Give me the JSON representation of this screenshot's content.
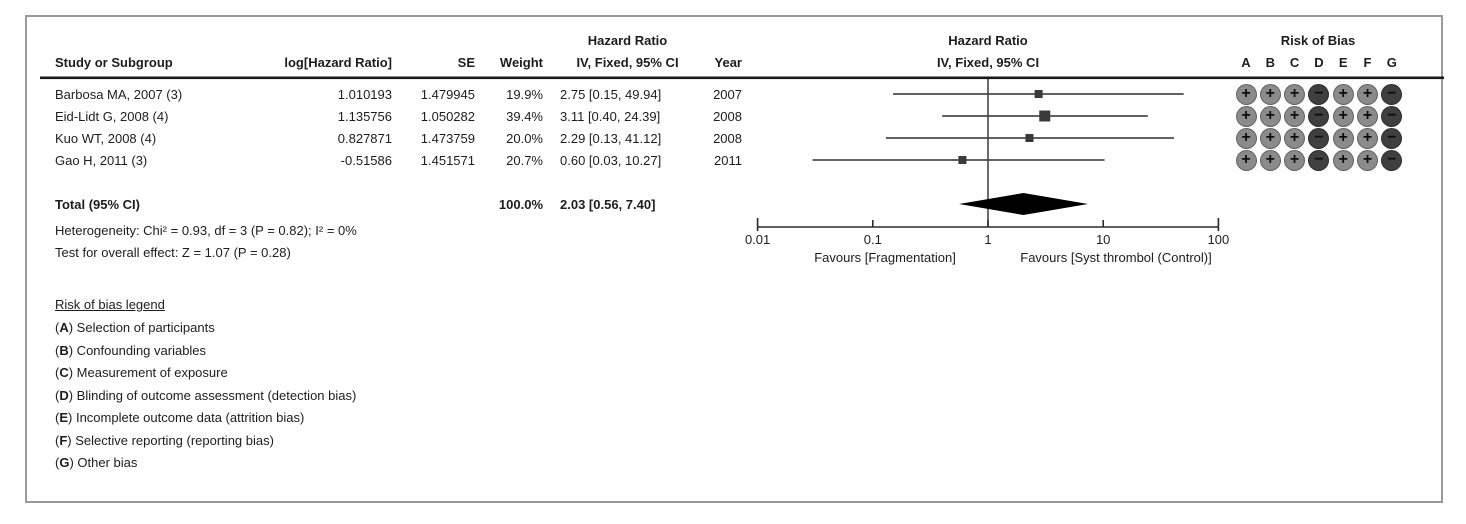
{
  "colors": {
    "frame_border": "#9a9a9a",
    "text": "#1d1d1d",
    "header_rule": "#1a1a1a",
    "ci_line": "#4b4b4b",
    "axis_line": "#2b2b2b",
    "square_fill": "#3a3a3a",
    "diamond_fill": "#000000",
    "bias_plus_fill": "#8b8b8b",
    "bias_minus_fill": "#3f3f3f",
    "bias_symbol": "#0d0d0d"
  },
  "table": {
    "headers": {
      "study": "Study or Subgroup",
      "log_hr": "log[Hazard Ratio]",
      "se": "SE",
      "weight": "Weight",
      "hazard_ratio_line1": "Hazard Ratio",
      "hazard_ratio_line2": "IV, Fixed, 95% CI",
      "year": "Year"
    }
  },
  "plot_header": {
    "line1": "Hazard Ratio",
    "line2": "IV, Fixed, 95% CI"
  },
  "risk_of_bias": {
    "title": "Risk of Bias",
    "columns": [
      "A",
      "B",
      "C",
      "D",
      "E",
      "F",
      "G"
    ],
    "legend_title": "Risk of bias legend",
    "legend": [
      {
        "key": "A",
        "text": "Selection of participants"
      },
      {
        "key": "B",
        "text": "Confounding variables"
      },
      {
        "key": "C",
        "text": "Measurement of exposure"
      },
      {
        "key": "D",
        "text": "Blinding of outcome assessment (detection bias)"
      },
      {
        "key": "E",
        "text": "Incomplete outcome data (attrition bias)"
      },
      {
        "key": "F",
        "text": "Selective reporting (reporting bias)"
      },
      {
        "key": "G",
        "text": "Other bias"
      }
    ]
  },
  "total": {
    "label": "Total (95% CI)",
    "weight_text": "100.0%",
    "ci_text": "2.03 [0.56, 7.40]"
  },
  "stats": {
    "heterogeneity": "Heterogeneity: Chi² = 0.93, df = 3 (P = 0.82); I² = 0%",
    "overall_effect": "Test for overall effect: Z = 1.07 (P = 0.28)"
  },
  "axis": {
    "favours_left": "Favours [Fragmentation]",
    "favours_right": "Favours [Syst thrombol (Control)]"
  },
  "chart_data": {
    "type": "forest",
    "title": "Hazard Ratio",
    "subtitle": "IV, Fixed, 95% CI",
    "xscale": "log",
    "xlim": [
      0.01,
      100
    ],
    "xticks": [
      0.01,
      0.1,
      1,
      10,
      100
    ],
    "xtick_labels": [
      "0.01",
      "0.1",
      "1",
      "10",
      "100"
    ],
    "favours": [
      "Favours [Fragmentation]",
      "Favours [Syst thrombol (Control)]"
    ],
    "studies": [
      {
        "name": "Barbosa MA, 2007 (3)",
        "log_hr_text": "1.010193",
        "se_text": "1.479945",
        "weight_text": "19.9%",
        "ci_text": "2.75 [0.15, 49.94]",
        "year": "2007",
        "log_hr": 1.010193,
        "se": 1.479945,
        "weight_pct": 19.9,
        "hr": 2.75,
        "ci_low": 0.15,
        "ci_high": 49.94,
        "bias": [
          "+",
          "+",
          "+",
          "-",
          "+",
          "+",
          "-"
        ]
      },
      {
        "name": "Eid-Lidt G, 2008 (4)",
        "log_hr_text": "1.135756",
        "se_text": "1.050282",
        "weight_text": "39.4%",
        "ci_text": "3.11 [0.40, 24.39]",
        "year": "2008",
        "log_hr": 1.135756,
        "se": 1.050282,
        "weight_pct": 39.4,
        "hr": 3.11,
        "ci_low": 0.4,
        "ci_high": 24.39,
        "bias": [
          "+",
          "+",
          "+",
          "-",
          "+",
          "+",
          "-"
        ]
      },
      {
        "name": "Kuo WT, 2008 (4)",
        "log_hr_text": "0.827871",
        "se_text": "1.473759",
        "weight_text": "20.0%",
        "ci_text": "2.29 [0.13, 41.12]",
        "year": "2008",
        "log_hr": 0.827871,
        "se": 1.473759,
        "weight_pct": 20.0,
        "hr": 2.29,
        "ci_low": 0.13,
        "ci_high": 41.12,
        "bias": [
          "+",
          "+",
          "+",
          "-",
          "+",
          "+",
          "-"
        ]
      },
      {
        "name": "Gao H, 2011 (3)",
        "log_hr_text": "-0.51586",
        "se_text": "1.451571",
        "weight_text": "20.7%",
        "ci_text": "0.60 [0.03, 10.27]",
        "year": "2011",
        "log_hr": -0.51586,
        "se": 1.451571,
        "weight_pct": 20.7,
        "hr": 0.6,
        "ci_low": 0.03,
        "ci_high": 10.27,
        "bias": [
          "+",
          "+",
          "+",
          "-",
          "+",
          "+",
          "-"
        ]
      }
    ],
    "total": {
      "hr": 2.03,
      "ci_low": 0.56,
      "ci_high": 7.4,
      "weight_pct": 100.0
    },
    "heterogeneity": {
      "chi2": 0.93,
      "df": 3,
      "p": 0.82,
      "i2_pct": 0
    },
    "overall_effect": {
      "z": 1.07,
      "p": 0.28
    }
  }
}
